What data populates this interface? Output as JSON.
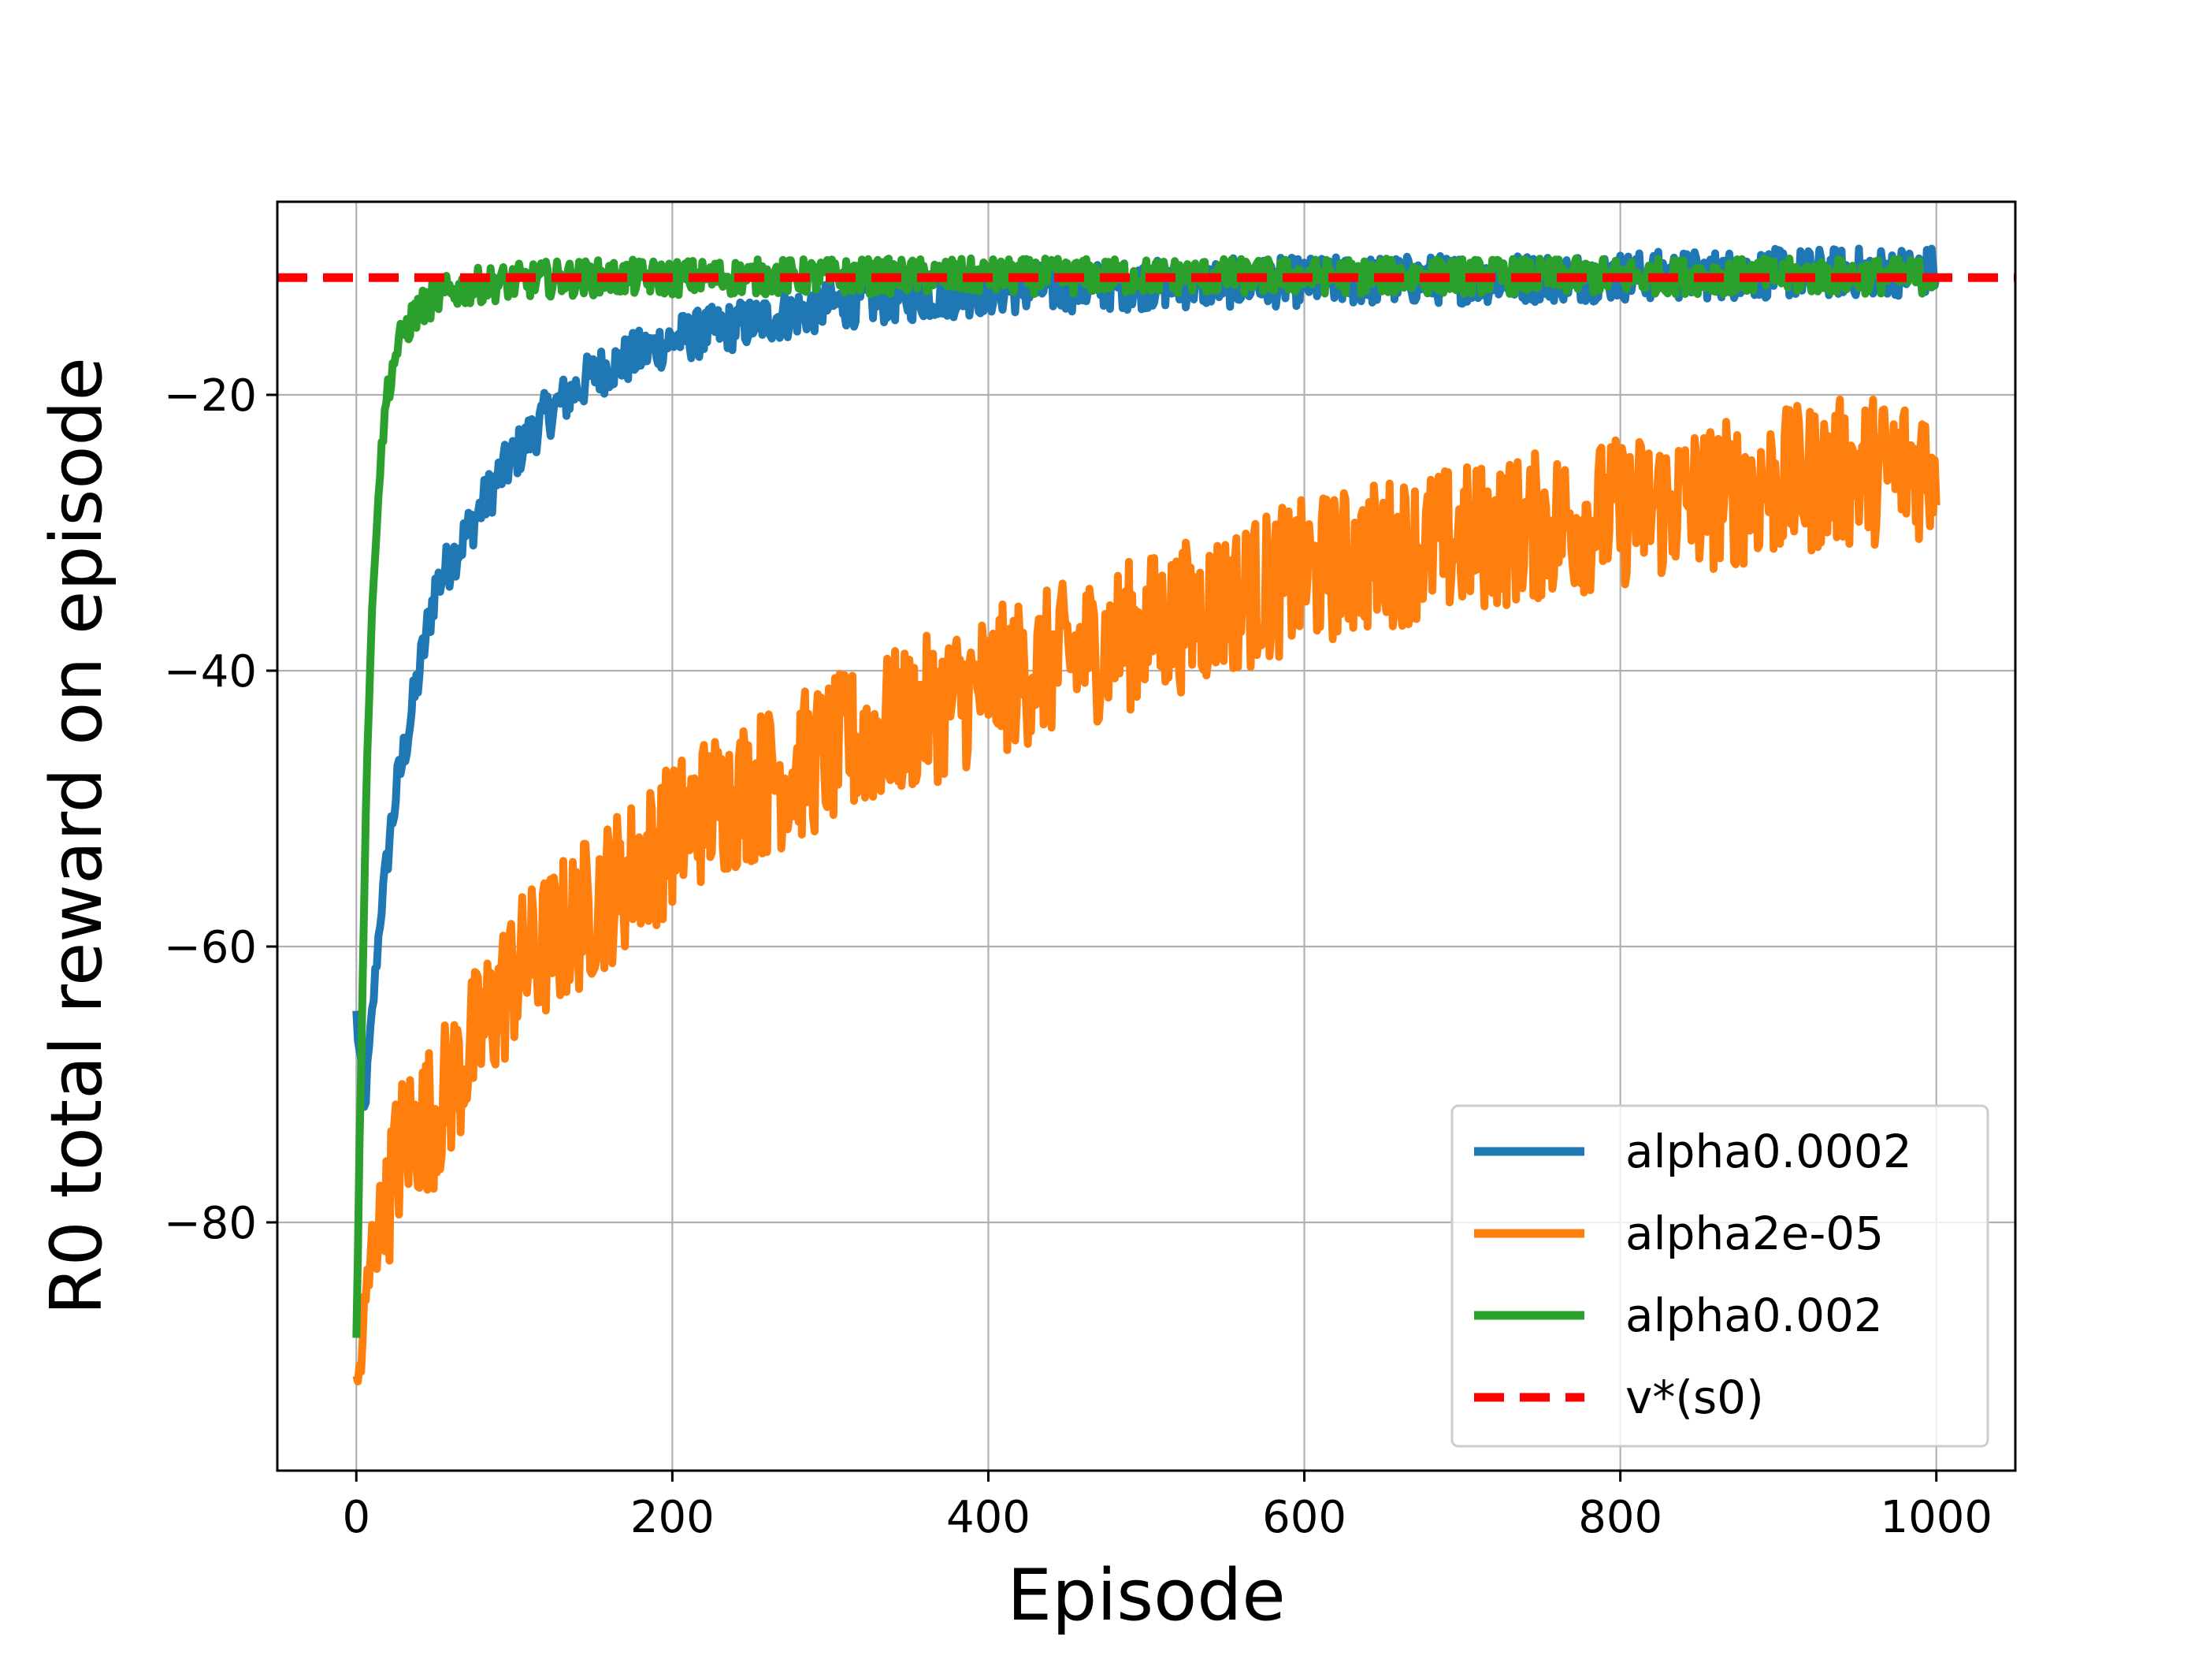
{
  "chart_data": {
    "type": "line",
    "title": "",
    "xlabel": "Episode",
    "ylabel": "R0 total reward on episode",
    "xlim": [
      -50,
      1050
    ],
    "ylim": [
      -98,
      -6
    ],
    "xticks": [
      0,
      200,
      400,
      600,
      800,
      1000
    ],
    "xtick_labels": [
      "0",
      "200",
      "400",
      "600",
      "800",
      "1000"
    ],
    "yticks": [
      -20,
      -40,
      -60,
      -80
    ],
    "ytick_labels": [
      "−20",
      "−40",
      "−60",
      "−80"
    ],
    "grid": true,
    "legend_position": "lower right",
    "series": [
      {
        "name": "alpha0.0002",
        "color": "#1f77b4",
        "style": "solid",
        "x": [
          0,
          5,
          10,
          15,
          20,
          25,
          30,
          35,
          40,
          45,
          50,
          60,
          70,
          80,
          90,
          100,
          110,
          120,
          130,
          140,
          150,
          160,
          170,
          180,
          190,
          200,
          220,
          240,
          260,
          280,
          300,
          320,
          340,
          360,
          380,
          400,
          450,
          500,
          550,
          600,
          650,
          700,
          750,
          800,
          850,
          900,
          950,
          1000
        ],
        "y": [
          -65,
          -72,
          -65,
          -58,
          -53,
          -49,
          -46,
          -43,
          -40,
          -37,
          -34,
          -32,
          -30,
          -28,
          -26,
          -24.5,
          -23,
          -21.5,
          -20.5,
          -19.5,
          -18.5,
          -18,
          -17.5,
          -17,
          -16.5,
          -16,
          -15.5,
          -15,
          -14.5,
          -14,
          -13.5,
          -13.2,
          -13,
          -12.8,
          -12.6,
          -12.4,
          -12.2,
          -12,
          -11.9,
          -11.8,
          -11.7,
          -11.6,
          -11.5,
          -11.4,
          -11.3,
          -11.2,
          -11.1,
          -11
        ]
      },
      {
        "name": "alpha2e-05",
        "color": "#ff7f0e",
        "style": "solid",
        "x": [
          0,
          10,
          20,
          30,
          40,
          50,
          60,
          70,
          80,
          90,
          100,
          120,
          140,
          160,
          180,
          200,
          220,
          240,
          260,
          280,
          300,
          320,
          340,
          360,
          380,
          400,
          450,
          500,
          550,
          600,
          650,
          700,
          750,
          800,
          850,
          900,
          950,
          1000
        ],
        "y": [
          -93,
          -82,
          -78,
          -74,
          -73,
          -72,
          -70,
          -68,
          -66,
          -64,
          -62,
          -60,
          -58,
          -56,
          -54,
          -52,
          -50,
          -49,
          -48,
          -47,
          -46,
          -45,
          -44,
          -43,
          -42,
          -41,
          -39,
          -37,
          -35,
          -33,
          -31.5,
          -30.5,
          -29.5,
          -28.5,
          -27.5,
          -26.5,
          -25.5,
          -25
        ]
      },
      {
        "name": "alpha0.002",
        "color": "#2ca02c",
        "style": "solid",
        "x": [
          0,
          2,
          4,
          6,
          8,
          10,
          12,
          14,
          16,
          18,
          20,
          25,
          30,
          35,
          40,
          50,
          60,
          80,
          100,
          120,
          150,
          200,
          300,
          400,
          500,
          600,
          700,
          800,
          900,
          1000
        ],
        "y": [
          -88,
          -75,
          -62,
          -50,
          -42,
          -36,
          -31,
          -27,
          -24,
          -21.5,
          -19.5,
          -17,
          -15.5,
          -14.5,
          -13.8,
          -13,
          -12.5,
          -12,
          -11.8,
          -11.6,
          -11.5,
          -11.5,
          -11.4,
          -11.4,
          -11.4,
          -11.4,
          -11.4,
          -11.4,
          -11.4,
          -11.4
        ]
      },
      {
        "name": "v*(s0)",
        "color": "#ff0000",
        "style": "dashed",
        "x": [
          -50,
          1050
        ],
        "y": [
          -11.5,
          -11.5
        ]
      }
    ]
  }
}
